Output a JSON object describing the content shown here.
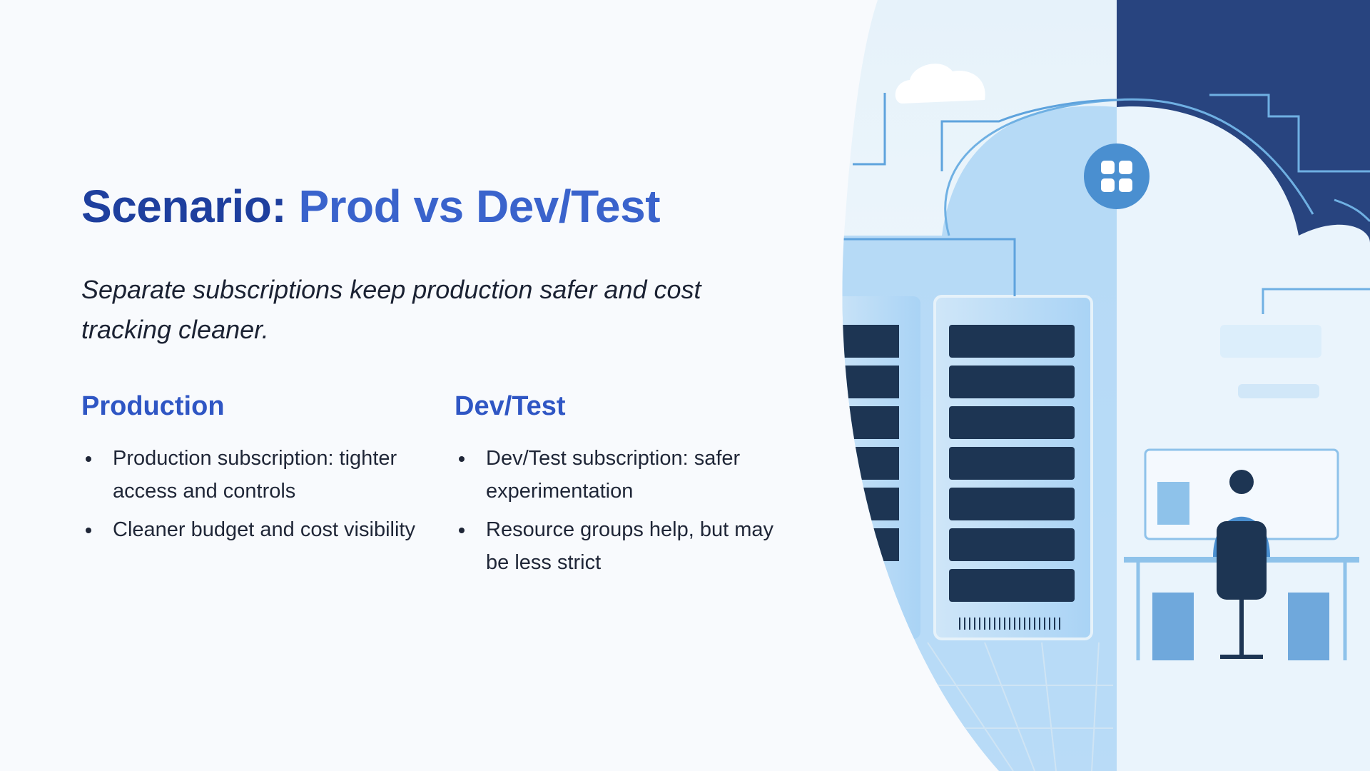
{
  "slide": {
    "title_part1": "Scenario:",
    "title_part2": "Prod vs Dev/Test",
    "subtitle": "Separate subscriptions keep production safer and cost tracking cleaner.",
    "columns": [
      {
        "heading": "Production",
        "bullets": [
          "Production subscription: tighter access and controls",
          "Cleaner budget and cost visibility"
        ]
      },
      {
        "heading": "Dev/Test",
        "bullets": [
          "Dev/Test subscription: safer experimentation",
          "Resource groups help, but may be less strict"
        ]
      }
    ]
  },
  "colors": {
    "title_dark": "#1e3f9e",
    "title_accent": "#3a63cc",
    "heading": "#2f56c4",
    "panel_navy": "#28447f",
    "light_blue": "#a9d3f5"
  },
  "illustration": {
    "icons": [
      "cloud-icon",
      "server-rack-icon",
      "app-grid-icon",
      "developer-at-desk-icon"
    ]
  }
}
